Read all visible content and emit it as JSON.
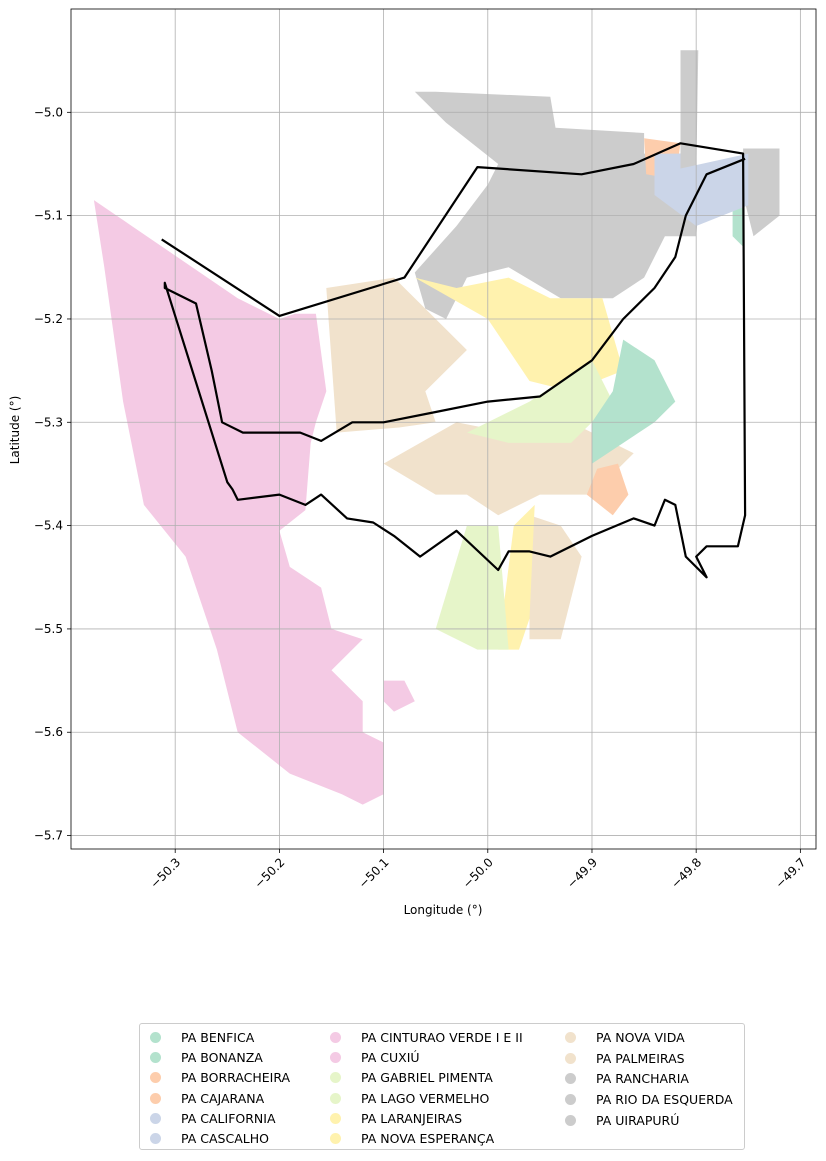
{
  "chart_data": {
    "type": "map",
    "xlabel": "Longitude (°)",
    "ylabel": "Latitude (°)",
    "xlim": [
      -50.4,
      -49.685
    ],
    "ylim": [
      -5.713,
      -4.9
    ],
    "xticks": [
      -50.3,
      -50.2,
      -50.1,
      -50.0,
      -49.9,
      -49.8,
      -49.7
    ],
    "yticks": [
      -5.0,
      -5.1,
      -5.2,
      -5.3,
      -5.4,
      -5.5,
      -5.6,
      -5.7
    ],
    "xtick_labels": [
      "−50.3",
      "−50.2",
      "−50.1",
      "−50.0",
      "−49.9",
      "−49.8",
      "−49.7"
    ],
    "ytick_labels": [
      "−5.0",
      "−5.1",
      "−5.2",
      "−5.3",
      "−5.4",
      "−5.5",
      "−5.6",
      "−5.7"
    ],
    "grid": true,
    "legend_placement": "bottom-center",
    "boundary_color": "#000000",
    "legend": [
      {
        "name": "PA BENFICA",
        "color": "#b3e2cd"
      },
      {
        "name": "PA BONANZA",
        "color": "#b3e2cd"
      },
      {
        "name": "PA BORRACHEIRA",
        "color": "#fdcdac"
      },
      {
        "name": "PA CAJARANA",
        "color": "#fdcdac"
      },
      {
        "name": "PA CALIFORNIA",
        "color": "#cbd5e8"
      },
      {
        "name": "PA CASCALHO",
        "color": "#cbd5e8"
      },
      {
        "name": "PA CINTURAO VERDE I E II",
        "color": "#f4cae4"
      },
      {
        "name": "PA CUXIÚ",
        "color": "#f4cae4"
      },
      {
        "name": "PA GABRIEL PIMENTA",
        "color": "#e6f5c9"
      },
      {
        "name": "PA LAGO VERMELHO",
        "color": "#e6f5c9"
      },
      {
        "name": "PA LARANJEIRAS",
        "color": "#fff2ae"
      },
      {
        "name": "PA NOVA ESPERANÇA",
        "color": "#fff2ae"
      },
      {
        "name": "PA NOVA VIDA",
        "color": "#f1e2cc"
      },
      {
        "name": "PA PALMEIRAS",
        "color": "#f1e2cc"
      },
      {
        "name": "PA RANCHARIA",
        "color": "#cccccc"
      },
      {
        "name": "PA RIO DA ESQUERDA",
        "color": "#cccccc"
      },
      {
        "name": "PA UIRAPURÚ",
        "color": "#cccccc"
      }
    ],
    "regions": [
      {
        "name": "PA CUXIÚ",
        "color": "#f4cae4",
        "coords": [
          [
            -50.378,
            -5.085
          ],
          [
            -50.24,
            -5.18
          ],
          [
            -50.2,
            -5.2
          ],
          [
            -50.185,
            -5.195
          ],
          [
            -50.165,
            -5.195
          ],
          [
            -50.155,
            -5.27
          ],
          [
            -50.165,
            -5.3
          ],
          [
            -50.17,
            -5.32
          ],
          [
            -50.175,
            -5.385
          ],
          [
            -50.2,
            -5.405
          ],
          [
            -50.19,
            -5.44
          ],
          [
            -50.16,
            -5.46
          ],
          [
            -50.15,
            -5.5
          ],
          [
            -50.12,
            -5.51
          ],
          [
            -50.15,
            -5.54
          ],
          [
            -50.12,
            -5.57
          ],
          [
            -50.12,
            -5.6
          ],
          [
            -50.1,
            -5.61
          ],
          [
            -50.1,
            -5.66
          ],
          [
            -50.12,
            -5.67
          ],
          [
            -50.14,
            -5.66
          ],
          [
            -50.19,
            -5.64
          ],
          [
            -50.24,
            -5.6
          ],
          [
            -50.26,
            -5.52
          ],
          [
            -50.29,
            -5.43
          ],
          [
            -50.33,
            -5.38
          ],
          [
            -50.35,
            -5.28
          ],
          [
            -50.368,
            -5.15
          ]
        ]
      },
      {
        "name": "PA CINTURAO VERDE I E II",
        "color": "#f4cae4",
        "coords": [
          [
            -50.1,
            -5.55
          ],
          [
            -50.08,
            -5.55
          ],
          [
            -50.07,
            -5.57
          ],
          [
            -50.09,
            -5.58
          ],
          [
            -50.1,
            -5.57
          ]
        ]
      },
      {
        "name": "PA NOVA VIDA",
        "color": "#f1e2cc",
        "coords": [
          [
            -50.155,
            -5.17
          ],
          [
            -50.09,
            -5.16
          ],
          [
            -50.05,
            -5.2
          ],
          [
            -50.02,
            -5.23
          ],
          [
            -50.06,
            -5.27
          ],
          [
            -50.05,
            -5.3
          ],
          [
            -50.085,
            -5.305
          ],
          [
            -50.145,
            -5.31
          ]
        ]
      },
      {
        "name": "PA PALMEIRAS",
        "color": "#f1e2cc",
        "coords": [
          [
            -50.1,
            -5.34
          ],
          [
            -50.03,
            -5.3
          ],
          [
            -49.98,
            -5.31
          ],
          [
            -49.92,
            -5.3
          ],
          [
            -49.86,
            -5.33
          ],
          [
            -49.9,
            -5.37
          ],
          [
            -49.95,
            -5.37
          ],
          [
            -49.99,
            -5.39
          ],
          [
            -50.02,
            -5.37
          ],
          [
            -50.05,
            -5.37
          ]
        ]
      },
      {
        "name": "PA PALMEIRAS",
        "color": "#f1e2cc",
        "coords": [
          [
            -49.96,
            -5.39
          ],
          [
            -49.93,
            -5.4
          ],
          [
            -49.91,
            -5.43
          ],
          [
            -49.93,
            -5.51
          ],
          [
            -49.96,
            -5.51
          ]
        ]
      },
      {
        "name": "PA RIO DA ESQUERDA",
        "color": "#cccccc",
        "coords": [
          [
            -50.05,
            -4.98
          ],
          [
            -49.94,
            -4.985
          ],
          [
            -49.935,
            -5.015
          ],
          [
            -49.85,
            -5.02
          ],
          [
            -49.85,
            -5.04
          ],
          [
            -49.815,
            -5.04
          ],
          [
            -49.795,
            -5.06
          ],
          [
            -49.8,
            -5.12
          ],
          [
            -49.83,
            -5.12
          ],
          [
            -49.85,
            -5.16
          ],
          [
            -49.88,
            -5.18
          ],
          [
            -49.93,
            -5.18
          ],
          [
            -49.98,
            -5.15
          ],
          [
            -50.02,
            -5.16
          ],
          [
            -50.04,
            -5.2
          ],
          [
            -50.06,
            -5.19
          ],
          [
            -50.07,
            -5.155
          ],
          [
            -50.03,
            -5.11
          ],
          [
            -50.0,
            -5.07
          ],
          [
            -49.99,
            -5.05
          ],
          [
            -50.04,
            -5.01
          ],
          [
            -50.07,
            -4.98
          ]
        ]
      },
      {
        "name": "PA RANCHARIA",
        "color": "#cccccc",
        "coords": [
          [
            -49.815,
            -4.94
          ],
          [
            -49.798,
            -4.94
          ],
          [
            -49.8,
            -5.06
          ],
          [
            -49.815,
            -5.06
          ]
        ]
      },
      {
        "name": "PA UIRAPURÚ",
        "color": "#cccccc",
        "coords": [
          [
            -49.755,
            -5.035
          ],
          [
            -49.72,
            -5.035
          ],
          [
            -49.72,
            -5.1
          ],
          [
            -49.745,
            -5.12
          ],
          [
            -49.755,
            -5.08
          ]
        ]
      },
      {
        "name": "PA LARANJEIRAS",
        "color": "#fff2ae",
        "coords": [
          [
            -50.07,
            -5.16
          ],
          [
            -50.0,
            -5.2
          ],
          [
            -49.96,
            -5.26
          ],
          [
            -49.92,
            -5.27
          ],
          [
            -49.87,
            -5.25
          ],
          [
            -49.89,
            -5.18
          ],
          [
            -49.94,
            -5.18
          ],
          [
            -49.98,
            -5.16
          ],
          [
            -50.03,
            -5.17
          ]
        ]
      },
      {
        "name": "PA NOVA ESPERANÇA",
        "color": "#fff2ae",
        "coords": [
          [
            -49.975,
            -5.4
          ],
          [
            -49.955,
            -5.38
          ],
          [
            -49.96,
            -5.49
          ],
          [
            -49.97,
            -5.52
          ],
          [
            -49.99,
            -5.52
          ]
        ]
      },
      {
        "name": "PA GABRIEL PIMENTA",
        "color": "#e6f5c9",
        "coords": [
          [
            -50.02,
            -5.31
          ],
          [
            -49.96,
            -5.28
          ],
          [
            -49.9,
            -5.24
          ],
          [
            -49.88,
            -5.28
          ],
          [
            -49.92,
            -5.32
          ],
          [
            -49.98,
            -5.32
          ]
        ]
      },
      {
        "name": "PA LAGO VERMELHO",
        "color": "#e6f5c9",
        "coords": [
          [
            -50.02,
            -5.4
          ],
          [
            -49.99,
            -5.4
          ],
          [
            -49.98,
            -5.52
          ],
          [
            -50.01,
            -5.52
          ],
          [
            -50.05,
            -5.5
          ]
        ]
      },
      {
        "name": "PA BENFICA",
        "color": "#b3e2cd",
        "coords": [
          [
            -49.87,
            -5.22
          ],
          [
            -49.84,
            -5.24
          ],
          [
            -49.82,
            -5.28
          ],
          [
            -49.84,
            -5.3
          ],
          [
            -49.9,
            -5.34
          ],
          [
            -49.9,
            -5.33
          ],
          [
            -49.9,
            -5.3
          ],
          [
            -49.88,
            -5.27
          ]
        ]
      },
      {
        "name": "PA BONANZA",
        "color": "#b3e2cd",
        "coords": [
          [
            -49.765,
            -5.09
          ],
          [
            -49.755,
            -5.09
          ],
          [
            -49.755,
            -5.13
          ],
          [
            -49.765,
            -5.12
          ]
        ]
      },
      {
        "name": "PA BORRACHEIRA",
        "color": "#fdcdac",
        "coords": [
          [
            -49.895,
            -5.345
          ],
          [
            -49.875,
            -5.34
          ],
          [
            -49.865,
            -5.37
          ],
          [
            -49.88,
            -5.39
          ],
          [
            -49.905,
            -5.37
          ]
        ]
      },
      {
        "name": "PA CAJARANA",
        "color": "#fdcdac",
        "coords": [
          [
            -49.85,
            -5.025
          ],
          [
            -49.815,
            -5.03
          ],
          [
            -49.82,
            -5.065
          ],
          [
            -49.848,
            -5.06
          ]
        ]
      },
      {
        "name": "PA CALIFORNIA",
        "color": "#cbd5e8",
        "coords": [
          [
            -49.84,
            -5.06
          ],
          [
            -49.75,
            -5.04
          ],
          [
            -49.75,
            -5.09
          ],
          [
            -49.8,
            -5.11
          ],
          [
            -49.84,
            -5.08
          ]
        ]
      },
      {
        "name": "PA CASCALHO",
        "color": "#cbd5e8",
        "coords": [
          [
            -49.84,
            -5.04
          ],
          [
            -49.815,
            -5.04
          ],
          [
            -49.815,
            -5.06
          ],
          [
            -49.84,
            -5.06
          ]
        ]
      }
    ],
    "boundary": [
      [
        -50.313,
        -5.123
      ],
      [
        -50.2,
        -5.197
      ],
      [
        -50.08,
        -5.16
      ],
      [
        -50.01,
        -5.053
      ],
      [
        -49.91,
        -5.06
      ],
      [
        -49.86,
        -5.05
      ],
      [
        -49.815,
        -5.03
      ],
      [
        -49.755,
        -5.04
      ],
      [
        -49.753,
        -5.39
      ],
      [
        -49.76,
        -5.42
      ],
      [
        -49.79,
        -5.42
      ],
      [
        -49.8,
        -5.43
      ],
      [
        -49.79,
        -5.45
      ],
      [
        -49.81,
        -5.43
      ],
      [
        -49.82,
        -5.38
      ],
      [
        -49.83,
        -5.375
      ],
      [
        -49.84,
        -5.4
      ],
      [
        -49.86,
        -5.393
      ],
      [
        -49.9,
        -5.41
      ],
      [
        -49.94,
        -5.43
      ],
      [
        -49.96,
        -5.425
      ],
      [
        -49.98,
        -5.425
      ],
      [
        -49.99,
        -5.443
      ],
      [
        -50.03,
        -5.405
      ],
      [
        -50.065,
        -5.43
      ],
      [
        -50.09,
        -5.41
      ],
      [
        -50.11,
        -5.397
      ],
      [
        -50.135,
        -5.393
      ],
      [
        -50.16,
        -5.37
      ],
      [
        -50.175,
        -5.38
      ],
      [
        -50.2,
        -5.37
      ],
      [
        -50.24,
        -5.375
      ],
      [
        -50.245,
        -5.365
      ],
      [
        -50.25,
        -5.358
      ],
      [
        -50.31,
        -5.165
      ],
      [
        -50.31,
        -5.17
      ],
      [
        -50.28,
        -5.185
      ],
      [
        -50.265,
        -5.25
      ],
      [
        -50.255,
        -5.3
      ],
      [
        -50.235,
        -5.31
      ],
      [
        -50.18,
        -5.31
      ],
      [
        -50.16,
        -5.318
      ],
      [
        -50.13,
        -5.3
      ],
      [
        -50.1,
        -5.3
      ],
      [
        -50.05,
        -5.29
      ],
      [
        -50.0,
        -5.28
      ],
      [
        -49.95,
        -5.275
      ],
      [
        -49.9,
        -5.24
      ],
      [
        -49.87,
        -5.2
      ],
      [
        -49.84,
        -5.17
      ],
      [
        -49.82,
        -5.14
      ],
      [
        -49.81,
        -5.1
      ],
      [
        -49.79,
        -5.06
      ],
      [
        -49.753,
        -5.045
      ]
    ]
  }
}
